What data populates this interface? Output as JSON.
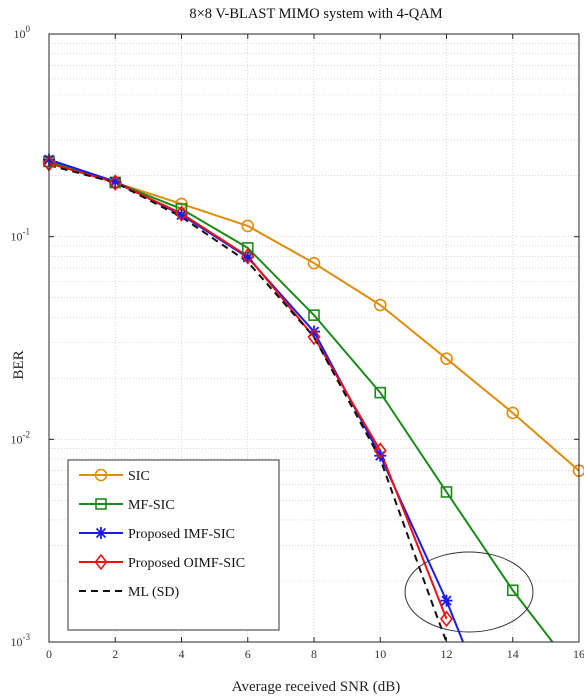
{
  "chart_data": {
    "type": "line",
    "title": "8×8 V-BLAST MIMO system with 4-QAM",
    "xlabel": "Average received SNR (dB)",
    "ylabel": "BER",
    "xlim": [
      0,
      16
    ],
    "ylim": [
      0.001,
      1
    ],
    "yscale": "log",
    "grid": true,
    "legend_position": "bottom-left",
    "x_ticks": [
      0,
      2,
      4,
      6,
      8,
      10,
      12,
      14,
      16
    ],
    "y_ticks": [
      {
        "value": 1,
        "base": "10",
        "exp": "0"
      },
      {
        "value": 0.1,
        "base": "10",
        "exp": "-1"
      },
      {
        "value": 0.01,
        "base": "10",
        "exp": "-2"
      },
      {
        "value": 0.001,
        "base": "10",
        "exp": "-3"
      }
    ],
    "series": [
      {
        "name": "SIC",
        "color": "#e08c0b",
        "marker": "circle",
        "dash": "solid",
        "x": [
          0,
          2,
          4,
          6,
          8,
          10,
          12,
          14,
          16
        ],
        "y": [
          0.235,
          0.185,
          0.145,
          0.113,
          0.074,
          0.046,
          0.025,
          0.0135,
          0.007
        ]
      },
      {
        "name": "MF-SIC",
        "color": "#1a8a1a",
        "marker": "square",
        "dash": "solid",
        "x": [
          0,
          2,
          4,
          6,
          8,
          10,
          12,
          14,
          15.2
        ],
        "y": [
          0.235,
          0.185,
          0.137,
          0.088,
          0.041,
          0.017,
          0.0055,
          0.0018,
          0.001
        ]
      },
      {
        "name": "Proposed IMF-SIC",
        "color": "#1a1aee",
        "marker": "asterisk",
        "dash": "solid",
        "x": [
          0,
          2,
          4,
          6,
          8,
          10,
          12,
          12.5
        ],
        "y": [
          0.24,
          0.187,
          0.128,
          0.079,
          0.034,
          0.0083,
          0.0016,
          0.001
        ]
      },
      {
        "name": "Proposed OIMF-SIC",
        "color": "#ee1111",
        "marker": "diamond",
        "dash": "solid",
        "x": [
          0,
          2,
          4,
          6,
          8,
          10,
          12
        ],
        "y": [
          0.23,
          0.185,
          0.13,
          0.08,
          0.032,
          0.0088,
          0.0013
        ]
      },
      {
        "name": "ML (SD)",
        "color": "#111111",
        "marker": "none",
        "dash": "dashed",
        "x": [
          0,
          2,
          4,
          6,
          8,
          10,
          11.6,
          12
        ],
        "y": [
          0.225,
          0.185,
          0.125,
          0.075,
          0.032,
          0.008,
          0.0015,
          0.001
        ]
      }
    ]
  }
}
